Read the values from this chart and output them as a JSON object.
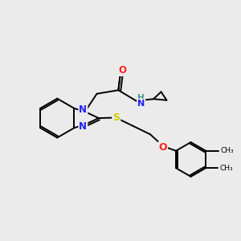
{
  "bg_color": "#ebebeb",
  "atom_colors": {
    "N": "#2020ff",
    "O": "#ff2020",
    "S": "#cccc00",
    "H": "#4a9090",
    "C": "#000000"
  },
  "bond_color": "#000000",
  "lw": 1.4
}
